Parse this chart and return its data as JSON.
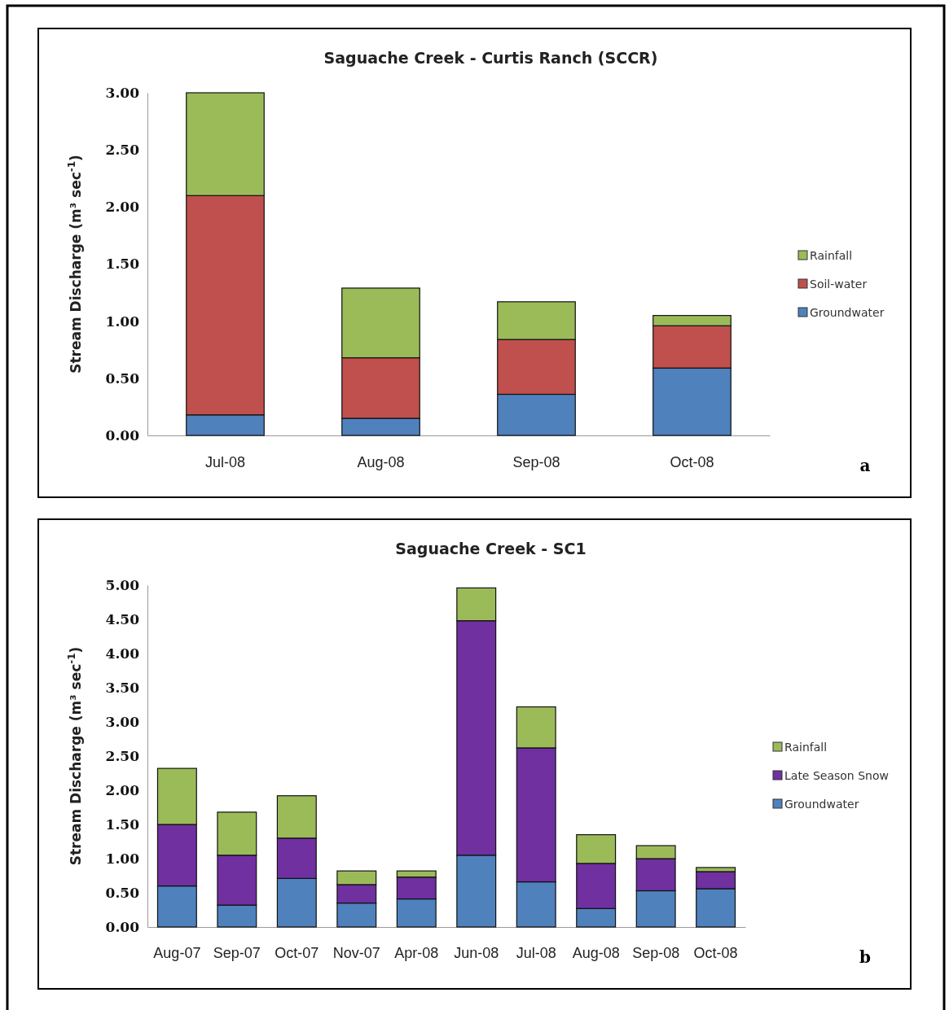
{
  "chart_data": [
    {
      "type": "bar",
      "title": "Saguache Creek - Curtis Ranch (SCCR)",
      "ylabel": "Stream Discharge (m³ sec$^{-1}$)",
      "categories": [
        "Jul-08",
        "Aug-08",
        "Sep-08",
        "Oct-08"
      ],
      "stacked": true,
      "legend": "right",
      "ylim": [
        0,
        3
      ],
      "yticks": [
        {
          "value": 0,
          "label": "0.00"
        },
        {
          "value": 0.5,
          "label": "0.50"
        },
        {
          "value": 1,
          "label": "1.00"
        },
        {
          "value": 1.5,
          "label": "1.50"
        },
        {
          "value": 2,
          "label": "2.00"
        },
        {
          "value": 2.5,
          "label": "2.50"
        },
        {
          "value": 3,
          "label": "3.00"
        }
      ],
      "annotations": [
        "a"
      ],
      "series": [
        {
          "name": "Groundwater",
          "color": "#4f81bd",
          "values": [
            0.18,
            0.15,
            0.36,
            0.59
          ]
        },
        {
          "name": "Soil-water",
          "color": "#c0504d",
          "values": [
            1.92,
            0.53,
            0.48,
            0.37
          ]
        },
        {
          "name": "Rainfall",
          "color": "#9bbb59",
          "values": [
            0.9,
            0.61,
            0.33,
            0.09
          ]
        }
      ]
    },
    {
      "type": "bar",
      "title": "Saguache Creek - SC1",
      "ylabel": "Stream Discharge (m³ sec$^{-1}$)",
      "categories": [
        "Aug-07",
        "Sep-07",
        "Oct-07",
        "Nov-07",
        "Apr-08",
        "Jun-08",
        "Jul-08",
        "Aug-08",
        "Sep-08",
        "Oct-08"
      ],
      "stacked": true,
      "legend": "right",
      "ylim": [
        0,
        5
      ],
      "yticks": [
        {
          "value": 0,
          "label": "0.00"
        },
        {
          "value": 0.5,
          "label": "0.50"
        },
        {
          "value": 1,
          "label": "1.00"
        },
        {
          "value": 1.5,
          "label": "1.50"
        },
        {
          "value": 2,
          "label": "2.00"
        },
        {
          "value": 2.5,
          "label": "2.50"
        },
        {
          "value": 3,
          "label": "3.00"
        },
        {
          "value": 3.5,
          "label": "3.50"
        },
        {
          "value": 4,
          "label": "4.00"
        },
        {
          "value": 4.5,
          "label": "4.50"
        },
        {
          "value": 5,
          "label": "5.00"
        }
      ],
      "annotations": [
        "b"
      ],
      "series": [
        {
          "name": "Groundwater",
          "color": "#4f81bd",
          "values": [
            0.6,
            0.32,
            0.71,
            0.35,
            0.41,
            1.05,
            0.66,
            0.27,
            0.53,
            0.56
          ]
        },
        {
          "name": "Late Season Snow",
          "color": "#7030a0",
          "values": [
            0.9,
            0.73,
            0.59,
            0.27,
            0.32,
            3.43,
            1.96,
            0.66,
            0.47,
            0.25
          ]
        },
        {
          "name": "Rainfall",
          "color": "#9bbb59",
          "values": [
            0.82,
            0.63,
            0.62,
            0.2,
            0.09,
            0.48,
            0.6,
            0.42,
            0.19,
            0.06
          ]
        }
      ]
    }
  ]
}
